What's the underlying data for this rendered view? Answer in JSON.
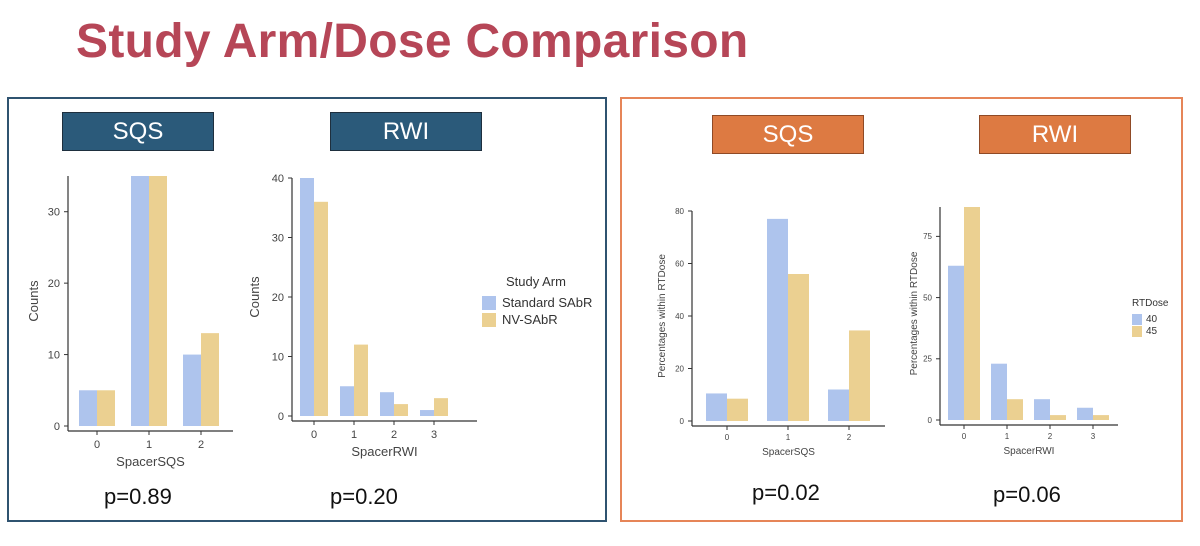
{
  "title": "Study Arm/Dose Comparison",
  "colors": {
    "title": "#b64657",
    "series_a": "#aec4ed",
    "series_b": "#ebd091",
    "left_border": "#2f5370",
    "right_border": "#e68558",
    "header_blue": "#2b5a7a",
    "header_orange": "#dd7a42"
  },
  "left": {
    "headers": [
      "SQS",
      "RWI"
    ],
    "pvalues": [
      "p=0.89",
      "p=0.20"
    ],
    "legend": {
      "title": "Study Arm",
      "items": [
        "Standard SAbR",
        "NV-SAbR"
      ]
    }
  },
  "right": {
    "headers": [
      "SQS",
      "RWI"
    ],
    "pvalues": [
      "p=0.02",
      "p=0.06"
    ],
    "legend": {
      "title": "RTDose",
      "items": [
        "40",
        "45"
      ]
    }
  },
  "chart_data": [
    {
      "type": "bar",
      "xlabel": "SpacerSQS",
      "ylabel": "Counts",
      "categories": [
        "0",
        "1",
        "2"
      ],
      "ylim": [
        0,
        35
      ],
      "yticks": [
        0,
        10,
        20,
        30
      ],
      "series": [
        {
          "name": "Standard SAbR",
          "values": [
            5,
            35,
            10
          ]
        },
        {
          "name": "NV-SAbR",
          "values": [
            5,
            35,
            13
          ]
        }
      ]
    },
    {
      "type": "bar",
      "xlabel": "SpacerRWI",
      "ylabel": "Counts",
      "categories": [
        "0",
        "1",
        "2",
        "3"
      ],
      "ylim": [
        0,
        40
      ],
      "yticks": [
        0,
        10,
        20,
        30,
        40
      ],
      "series": [
        {
          "name": "Standard SAbR",
          "values": [
            40,
            5,
            4,
            1
          ]
        },
        {
          "name": "NV-SAbR",
          "values": [
            36,
            12,
            2,
            3
          ]
        }
      ]
    },
    {
      "type": "bar",
      "xlabel": "SpacerSQS",
      "ylabel": "Percentages within RTDose",
      "categories": [
        "0",
        "1",
        "2"
      ],
      "ylim": [
        0,
        80
      ],
      "yticks": [
        0,
        20,
        40,
        60,
        80
      ],
      "series": [
        {
          "name": "40",
          "values": [
            10.5,
            77,
            12
          ]
        },
        {
          "name": "45",
          "values": [
            8.5,
            56,
            34.5
          ]
        }
      ]
    },
    {
      "type": "bar",
      "xlabel": "SpacerRWI",
      "ylabel": "Percentages within RTDose",
      "categories": [
        "0",
        "1",
        "2",
        "3"
      ],
      "ylim": [
        0,
        87
      ],
      "yticks": [
        0,
        25,
        50,
        75
      ],
      "series": [
        {
          "name": "40",
          "values": [
            63,
            23,
            8.5,
            5
          ]
        },
        {
          "name": "45",
          "values": [
            87,
            8.5,
            2,
            2
          ]
        }
      ]
    }
  ]
}
